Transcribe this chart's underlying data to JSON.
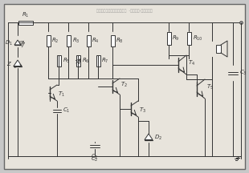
{
  "bg_color": "#c8c8c8",
  "inner_bg": "#e8e4dc",
  "border_color": "#444444",
  "line_color": "#333333",
  "fig_width": 3.1,
  "fig_height": 2.16,
  "dpi": 100,
  "title_text": "汽车电喜叭的结构和工作原理  -解决方案-华强电子网"
}
